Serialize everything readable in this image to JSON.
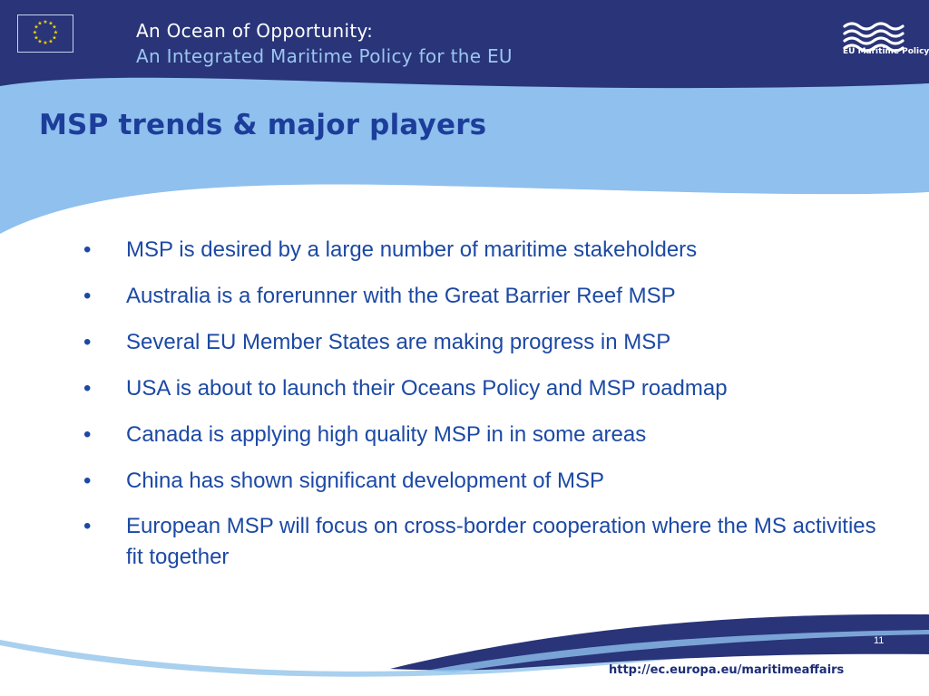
{
  "header": {
    "line1": "An Ocean of Opportunity:",
    "line2": "An Integrated Maritime Policy for the EU",
    "logo_text": "EU Maritime Policy"
  },
  "title": "MSP trends & major players",
  "bullets": [
    "MSP is desired by a large number of maritime stakeholders",
    "Australia is a forerunner with the Great Barrier Reef MSP",
    "Several EU Member States are making progress in MSP",
    "USA is about to launch their Oceans Policy and MSP roadmap",
    "Canada is applying high quality MSP in in some areas",
    "China has shown significant development of MSP",
    "European MSP will focus on cross-border cooperation where the MS activities fit together"
  ],
  "footer": {
    "page_number": "11",
    "url": "http://ec.europa.eu/maritimeaffairs"
  },
  "colors": {
    "navy": "#293479",
    "light_blue": "#8fc0ee",
    "title_blue": "#1d3d9a",
    "text_blue": "#1c49a4"
  }
}
